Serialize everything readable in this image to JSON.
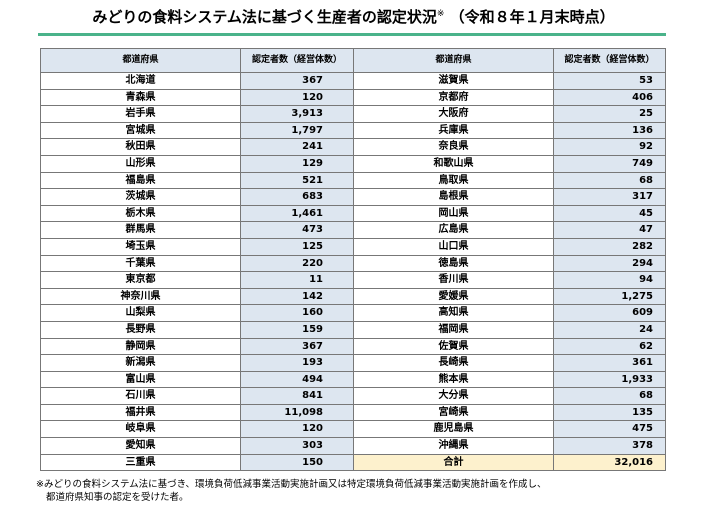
{
  "header": {
    "title": "みどりの食料システム法に基づく生産者の認定状況",
    "title_mark": "※",
    "title_date": "（令和８年１月末時点）"
  },
  "table": {
    "columns": [
      "都道府県",
      "認定者数（経営体数）",
      "都道府県",
      "認定者数（経営体数）"
    ],
    "rows": [
      [
        "北海道",
        "367",
        "滋賀県",
        "53"
      ],
      [
        "青森県",
        "120",
        "京都府",
        "406"
      ],
      [
        "岩手県",
        "3,913",
        "大阪府",
        "25"
      ],
      [
        "宮城県",
        "1,797",
        "兵庫県",
        "136"
      ],
      [
        "秋田県",
        "241",
        "奈良県",
        "92"
      ],
      [
        "山形県",
        "129",
        "和歌山県",
        "749"
      ],
      [
        "福島県",
        "521",
        "鳥取県",
        "68"
      ],
      [
        "茨城県",
        "683",
        "島根県",
        "317"
      ],
      [
        "栃木県",
        "1,461",
        "岡山県",
        "45"
      ],
      [
        "群馬県",
        "473",
        "広島県",
        "47"
      ],
      [
        "埼玉県",
        "125",
        "山口県",
        "282"
      ],
      [
        "千葉県",
        "220",
        "徳島県",
        "294"
      ],
      [
        "東京都",
        "11",
        "香川県",
        "94"
      ],
      [
        "神奈川県",
        "142",
        "愛媛県",
        "1,275"
      ],
      [
        "山梨県",
        "160",
        "高知県",
        "609"
      ],
      [
        "長野県",
        "159",
        "福岡県",
        "24"
      ],
      [
        "静岡県",
        "367",
        "佐賀県",
        "62"
      ],
      [
        "新潟県",
        "193",
        "長崎県",
        "361"
      ],
      [
        "富山県",
        "494",
        "熊本県",
        "1,933"
      ],
      [
        "石川県",
        "841",
        "大分県",
        "68"
      ],
      [
        "福井県",
        "11,098",
        "宮崎県",
        "135"
      ],
      [
        "岐阜県",
        "120",
        "鹿児島県",
        "475"
      ],
      [
        "愛知県",
        "303",
        "沖縄県",
        "378"
      ],
      [
        "三重県",
        "150",
        "合計",
        "32,016"
      ]
    ]
  },
  "footnote": [
    "※みどりの食料システム法に基づき、環境負荷低減事業活動実施計画又は特定環境負荷低減事業活動実施計画を作成し、",
    "都道府県知事の認定を受けた者。"
  ]
}
